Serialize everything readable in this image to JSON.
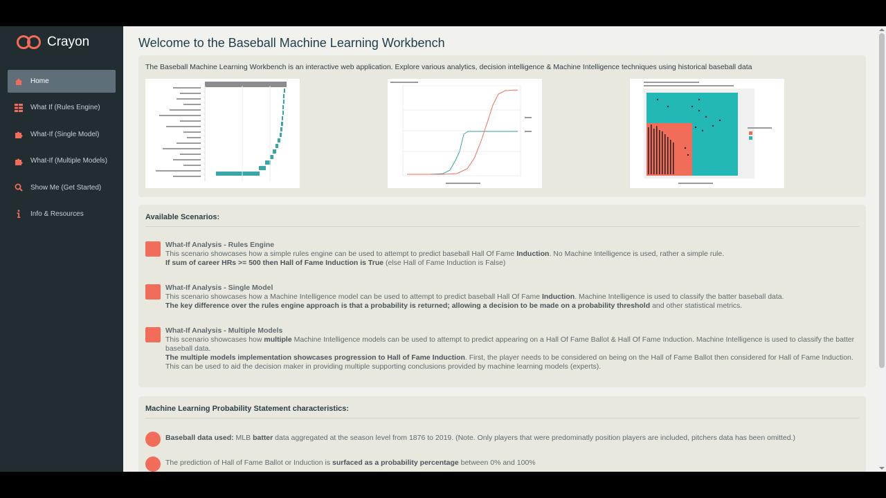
{
  "app": {
    "logo_text": "Crayon",
    "colors": {
      "sidebar": "#222d32",
      "accent": "#f26c5a",
      "teal": "#23b8b5"
    }
  },
  "sidebar": {
    "items": [
      {
        "label": "Home",
        "icon": "home-icon",
        "active": true
      },
      {
        "label": "What If (Rules Engine)",
        "icon": "grid-icon"
      },
      {
        "label": "What-If (Single Model)",
        "icon": "puzzle-icon"
      },
      {
        "label": "What-If (Multiple Models)",
        "icon": "puzzle-icon"
      },
      {
        "label": "Show Me (Get Started)",
        "icon": "search-icon"
      },
      {
        "label": "Info & Resources",
        "icon": "info-icon"
      }
    ]
  },
  "main": {
    "title": "Welcome to the Baseball Machine Learning Workbench",
    "intro": "The Baseball Machine Learning Workbench is an interactive web application. Explore various analytics, decision intelligence & Machine Intelligence techniques using historical baseball data",
    "scenarios_title": "Available Scenarios:",
    "scenarios": [
      {
        "title": "What-If Analysis - Rules Engine",
        "desc_a": "This scenario showcases how a simple rules engine can be used to attempt to predict baseball Hall Of Fame ",
        "desc_strong": "Induction",
        "desc_b": ". No Machine Intelligence is used, rather a simple rule.",
        "line2_strong": "If sum of career HRs >= 500 then Hall of Fame Induction is True",
        "line2_rest": " (else Hall of Fame Induction is False)"
      },
      {
        "title": "What-If Analysis - Single Model",
        "desc_a": "This scenario showcases how a Machine Intelligence model can be used to attempt to predict baseball Hall Of Fame ",
        "desc_strong": "Induction",
        "desc_b": ". Machine Intelligence is used to classify the batter baseball data.",
        "line2_strong": "The key difference over the rules engine approach is that a probability is returned; allowing a decision to be made on a probability threshold",
        "line2_rest": " and other statistical metrics."
      },
      {
        "title": "What-If Analysis - Multiple Models",
        "desc_a": "This scenario showcases how ",
        "desc_strong": "multiple",
        "desc_b": " Machine Intelligence models can be used to attempt to predict appearing on a Hall Of Fame Ballot & Hall Of Fame Induction. Machine Intelligence is used to classify the batter baseball data.",
        "line2_strong": "The multiple models implementation showcases progression to Hall of Fame Induction",
        "line2_rest": ". First, the player needs to be considered on being on the Hall of Fame Ballot then considered for Hall of Fame Induction. This can be used to aid the decision maker in providing multiple supporting conclusions provided by machine learning models (experts)."
      }
    ],
    "characteristics_title": "Machine Learning Probability Statement characteristics:",
    "bullets": [
      {
        "strong": "Baseball data used:",
        "mid": " MLB ",
        "strong2": "batter",
        "rest": " data aggregated at the season level from 1876 to 2019. (Note. Only players that were predominatly position players are included, pitchers data has been omitted.)"
      },
      {
        "strong": "",
        "mid": "The prediction of Hall of Fame Ballot or Induction is ",
        "strong2": "surfaced as a probability percentage",
        "rest": " between 0% and 100%"
      }
    ]
  }
}
